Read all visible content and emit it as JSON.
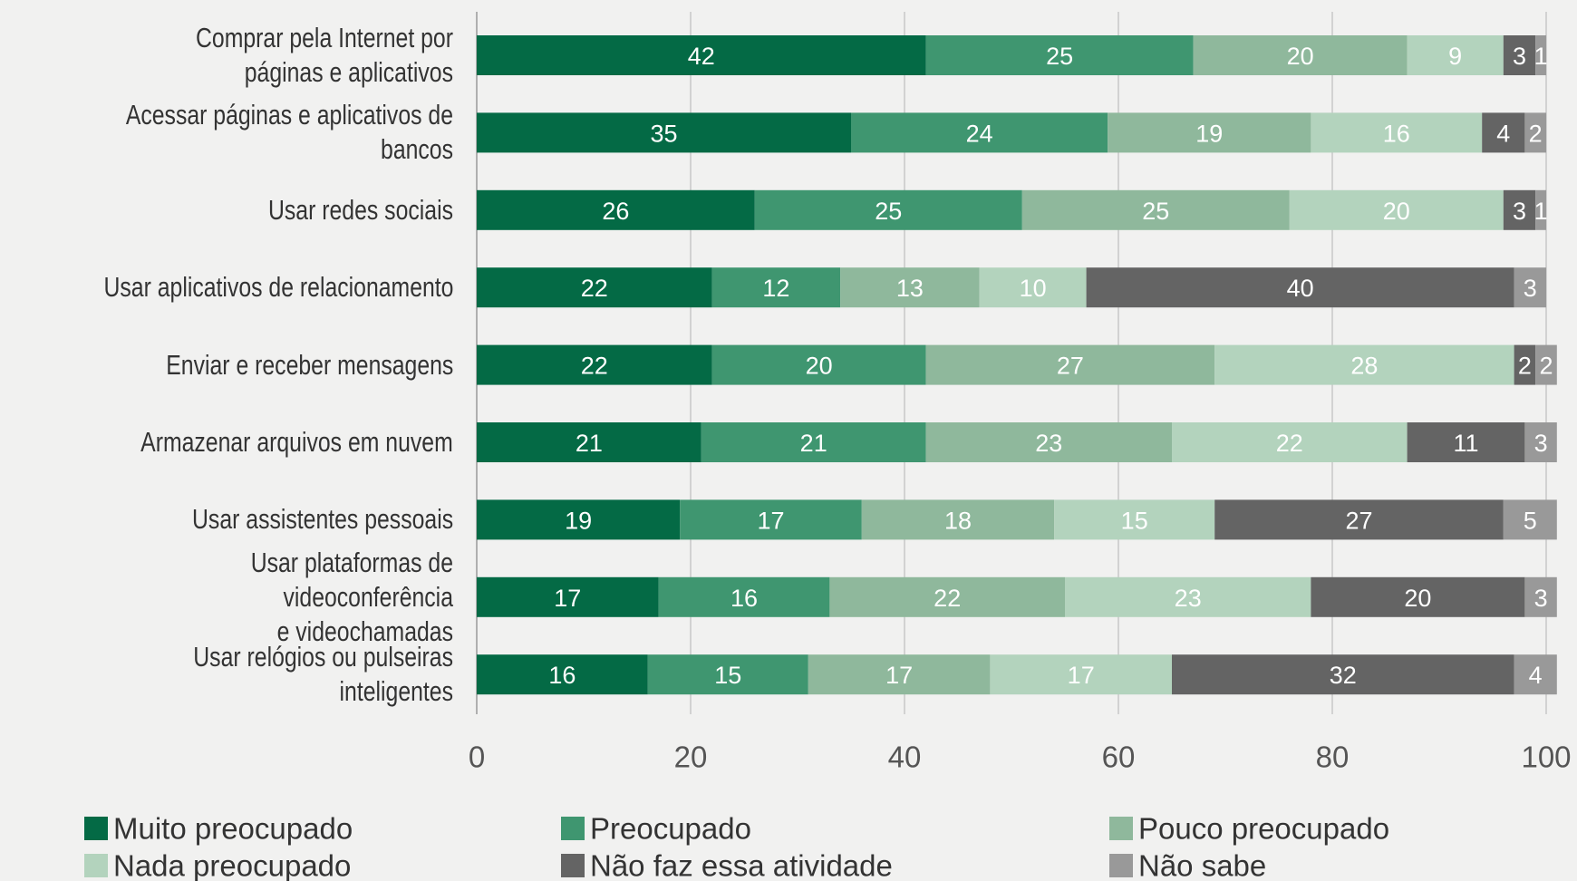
{
  "chart_data": {
    "type": "stacked-bar-horizontal",
    "categories": [
      "Comprar pela Internet por\npáginas e aplicativos",
      "Acessar páginas e aplicativos de bancos",
      "Usar redes sociais",
      "Usar aplicativos de relacionamento",
      "Enviar e receber mensagens",
      "Armazenar arquivos em nuvem",
      "Usar assistentes pessoais",
      "Usar plataformas de videoconferência\ne videochamadas",
      "Usar relógios ou pulseiras inteligentes"
    ],
    "series": [
      {
        "name": "Muito preocupado",
        "color": "#046a45",
        "values": [
          42,
          35,
          26,
          22,
          22,
          21,
          19,
          17,
          16
        ]
      },
      {
        "name": "Preocupado",
        "color": "#3f9670",
        "values": [
          25,
          24,
          25,
          12,
          20,
          21,
          17,
          16,
          15
        ]
      },
      {
        "name": "Pouco preocupado",
        "color": "#8fb89c",
        "values": [
          20,
          19,
          25,
          13,
          27,
          23,
          18,
          22,
          17
        ]
      },
      {
        "name": "Nada preocupado",
        "color": "#b3d3bd",
        "values": [
          9,
          16,
          20,
          10,
          28,
          22,
          15,
          23,
          17
        ]
      },
      {
        "name": "Não faz essa atividade",
        "color": "#646464",
        "values": [
          3,
          4,
          3,
          40,
          2,
          11,
          27,
          20,
          32
        ]
      },
      {
        "name": "Não sabe",
        "color": "#999999",
        "values": [
          1,
          2,
          1,
          3,
          2,
          3,
          5,
          3,
          4
        ]
      }
    ],
    "xlim": [
      0,
      100
    ],
    "xticks": [
      0,
      20,
      40,
      60,
      80,
      100
    ],
    "grid": true
  }
}
